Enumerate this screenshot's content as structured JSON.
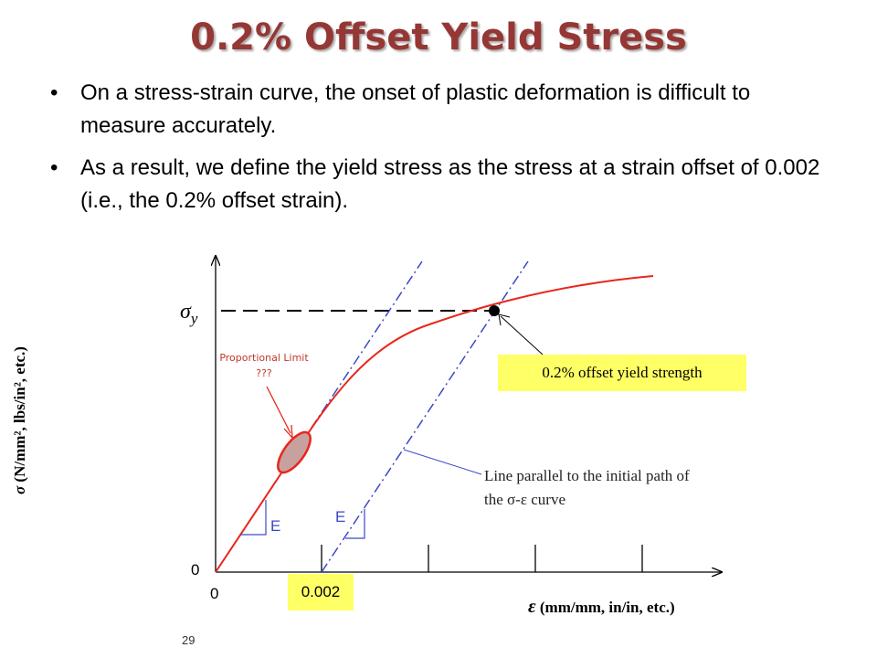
{
  "title": "0.2% Offset Yield Stress",
  "bullets": [
    "On a stress-strain curve, the onset of plastic deformation is difficult to measure accurately.",
    "As a result, we define the yield stress as the stress at a strain offset of 0.002 (i.e., the 0.2% offset strain)."
  ],
  "bullet_symbol": "•",
  "diagram": {
    "y_axis_label_symbol": "σ",
    "y_axis_label_units": " (N/mm², lbs/in², etc.)",
    "x_axis_label_symbol": "ε",
    "x_axis_label_units": " (mm/mm, in/in, etc.)",
    "sigma_y_label": "σ",
    "sigma_y_sub": "y",
    "origin_x_label": "0",
    "origin_y_label": "0",
    "offset_strain_label": "0.002",
    "yield_callout": "0.2% offset yield strength",
    "parallel_line_label": "Line parallel to the initial path of the σ-ε curve",
    "proportional_limit_label": "Proportional Limit ???",
    "modulus_label_left": "E",
    "modulus_label_right": "E",
    "colors": {
      "curve": "#e8261c",
      "offset_lines": "#3b49c8",
      "callout_bg": "#ffff66",
      "title": "#953735",
      "ellipse_fill": "#c9a0a0"
    }
  },
  "slide_number": "29"
}
